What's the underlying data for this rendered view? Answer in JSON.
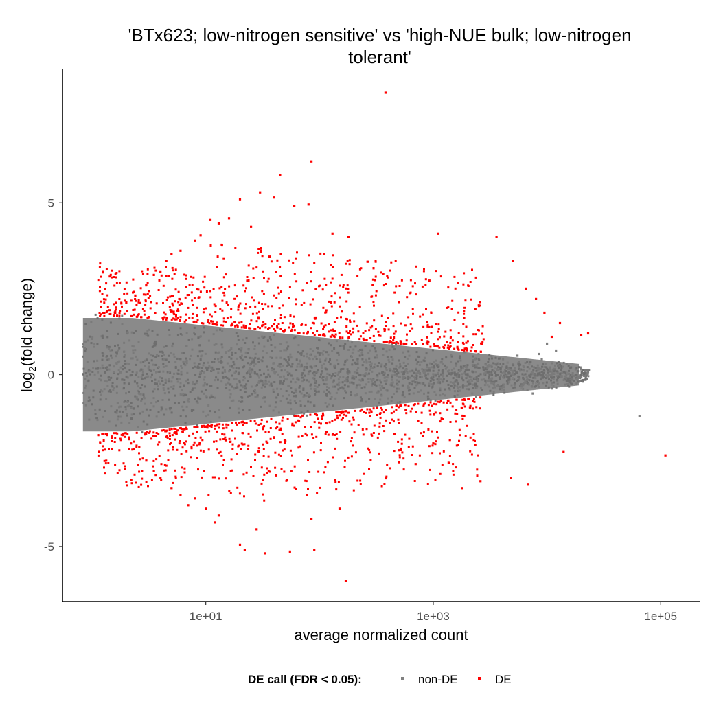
{
  "chart_data": {
    "type": "scatter",
    "title": "'BTx623; low-nitrogen sensitive' vs 'high-NUE bulk; low-nitrogen tolerant'",
    "title_lines": [
      "'BTx623; low-nitrogen sensitive' vs 'high-NUE bulk; low-nitrogen",
      "tolerant'"
    ],
    "xlabel": "average normalized count",
    "ylabel": "log2(fold change)",
    "ylabel_parts": {
      "base": "log",
      "sub": "2",
      "rest": "(fold change)"
    },
    "x_scale": "log10",
    "xlim": [
      0.55,
      220000
    ],
    "ylim": [
      -6.6,
      8.9
    ],
    "x_ticks": [
      10,
      1000,
      100000
    ],
    "x_tick_labels": [
      "1e+01",
      "1e+03",
      "1e+05"
    ],
    "y_ticks": [
      5,
      0,
      -5
    ],
    "y_tick_labels": [
      "5",
      "0",
      "-5"
    ],
    "grid": false,
    "legend": {
      "position": "bottom",
      "title": "DE call (FDR < 0.05):",
      "entries": [
        {
          "label": "non-DE",
          "color": "#808080"
        },
        {
          "label": "DE",
          "color": "#ff0000"
        }
      ]
    },
    "series": [
      {
        "name": "non-DE",
        "color": "#808080",
        "note_points_sampled": "dense cloud; representative outliers",
        "points": [
          [
            65000,
            -1.2
          ],
          [
            20000,
            0.15
          ],
          [
            12000,
            0.7
          ],
          [
            15000,
            0.05
          ],
          [
            9000,
            0.45
          ],
          [
            8000,
            -0.25
          ],
          [
            7000,
            0.3
          ],
          [
            6000,
            -0.4
          ],
          [
            5500,
            0.55
          ],
          [
            5000,
            -0.1
          ],
          [
            4500,
            0.35
          ],
          [
            4000,
            -0.45
          ],
          [
            3500,
            0.2
          ],
          [
            3000,
            -0.3
          ],
          [
            2500,
            0.6
          ],
          [
            2200,
            -0.55
          ],
          [
            11000,
            -0.3
          ],
          [
            10000,
            0.9
          ],
          [
            8500,
            0.6
          ],
          [
            7500,
            -0.55
          ]
        ]
      },
      {
        "name": "DE",
        "color": "#ff0000",
        "points": [
          [
            380,
            8.2
          ],
          [
            85,
            6.2
          ],
          [
            45,
            5.8
          ],
          [
            30,
            5.3
          ],
          [
            20,
            5.1
          ],
          [
            40,
            5.15
          ],
          [
            60,
            4.9
          ],
          [
            80,
            4.95
          ],
          [
            11,
            4.5
          ],
          [
            13,
            4.4
          ],
          [
            16,
            4.55
          ],
          [
            25,
            4.3
          ],
          [
            8,
            3.9
          ],
          [
            9,
            4.05
          ],
          [
            130,
            4.1
          ],
          [
            180,
            4.0
          ],
          [
            1100,
            4.1
          ],
          [
            3600,
            4.0
          ],
          [
            5000,
            3.3
          ],
          [
            6500,
            2.5
          ],
          [
            8000,
            2.2
          ],
          [
            9500,
            1.8
          ],
          [
            13000,
            1.5
          ],
          [
            20000,
            1.15
          ],
          [
            23000,
            1.2
          ],
          [
            11000,
            1.1
          ],
          [
            14000,
            -2.25
          ],
          [
            110000,
            -2.35
          ],
          [
            170,
            -6.0
          ],
          [
            90,
            -5.1
          ],
          [
            55,
            -5.15
          ],
          [
            33,
            -5.2
          ],
          [
            22,
            -5.1
          ],
          [
            20,
            -4.95
          ],
          [
            28,
            -4.5
          ],
          [
            85,
            -4.2
          ],
          [
            12,
            -4.3
          ],
          [
            13,
            -4.1
          ],
          [
            10,
            -3.9
          ],
          [
            8,
            -3.6
          ],
          [
            150,
            -3.9
          ],
          [
            1800,
            -3.3
          ],
          [
            2600,
            -3.1
          ],
          [
            4800,
            -3.0
          ],
          [
            6800,
            -3.2
          ],
          [
            2.2,
            -2.0
          ],
          [
            1.8,
            -1.9
          ],
          [
            2.6,
            -2.1
          ],
          [
            1.5,
            -1.8
          ],
          [
            1.6,
            1.8
          ],
          [
            2.0,
            2.1
          ],
          [
            2.4,
            2.3
          ],
          [
            3.0,
            2.6
          ],
          [
            3.5,
            2.9
          ],
          [
            4.0,
            3.0
          ],
          [
            4.5,
            3.3
          ],
          [
            5.0,
            3.5
          ],
          [
            6.0,
            3.6
          ],
          [
            3.0,
            -2.5
          ],
          [
            3.5,
            -2.8
          ],
          [
            4.0,
            -3.0
          ],
          [
            5.0,
            -3.3
          ],
          [
            6.0,
            -3.5
          ],
          [
            7.0,
            -3.8
          ],
          [
            1000,
            -2.0
          ],
          [
            700,
            -2.6
          ],
          [
            500,
            -2.2
          ],
          [
            1400,
            -1.9
          ]
        ]
      }
    ]
  }
}
